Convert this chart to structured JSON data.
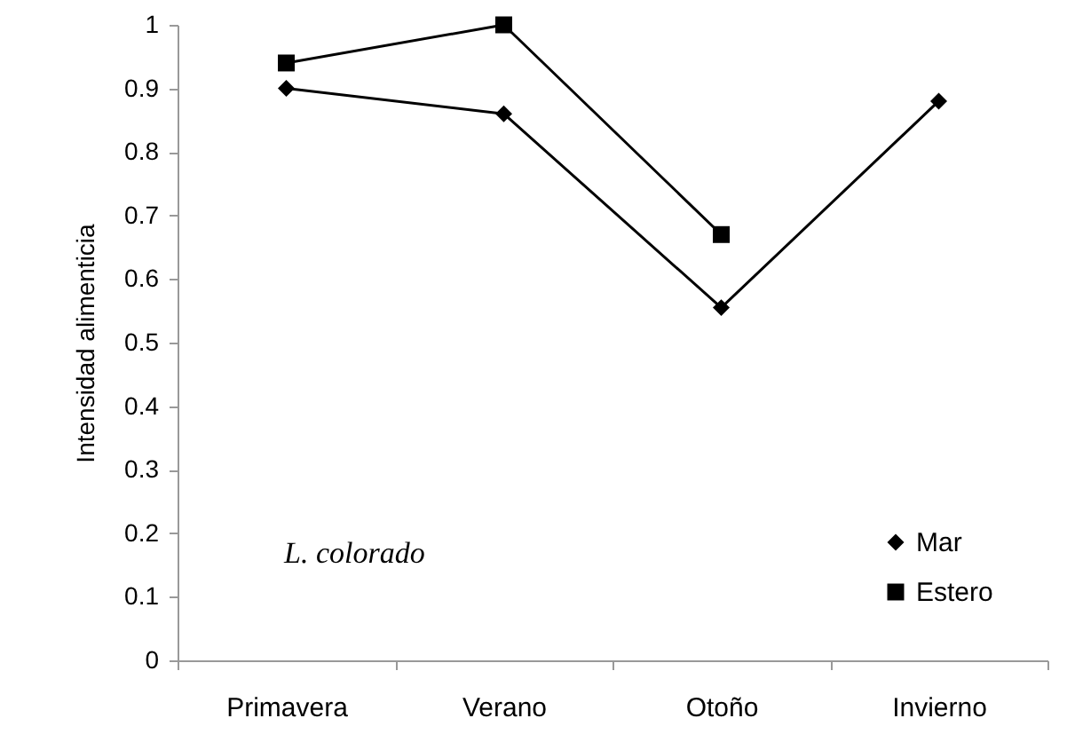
{
  "chart_data": {
    "type": "line",
    "ylabel": "Intensidad alimenticia",
    "categories": [
      "Primavera",
      "Verano",
      "Otoño",
      "Invierno"
    ],
    "series": [
      {
        "name": "Mar",
        "color": "#000000",
        "marker": "diamond",
        "values": [
          0.9,
          0.86,
          0.555,
          0.88
        ]
      },
      {
        "name": "Estero",
        "color": "#000000",
        "marker": "square",
        "values": [
          0.94,
          1.0,
          0.67,
          null
        ]
      }
    ],
    "ylim": [
      0,
      1
    ],
    "yticks": [
      0,
      0.1,
      0.2,
      0.3,
      0.4,
      0.5,
      0.6,
      0.7,
      0.8,
      0.9,
      1
    ],
    "grid": false,
    "legend": "bottom right",
    "line_style": "solid",
    "annotations": [
      "L. colorado"
    ]
  }
}
